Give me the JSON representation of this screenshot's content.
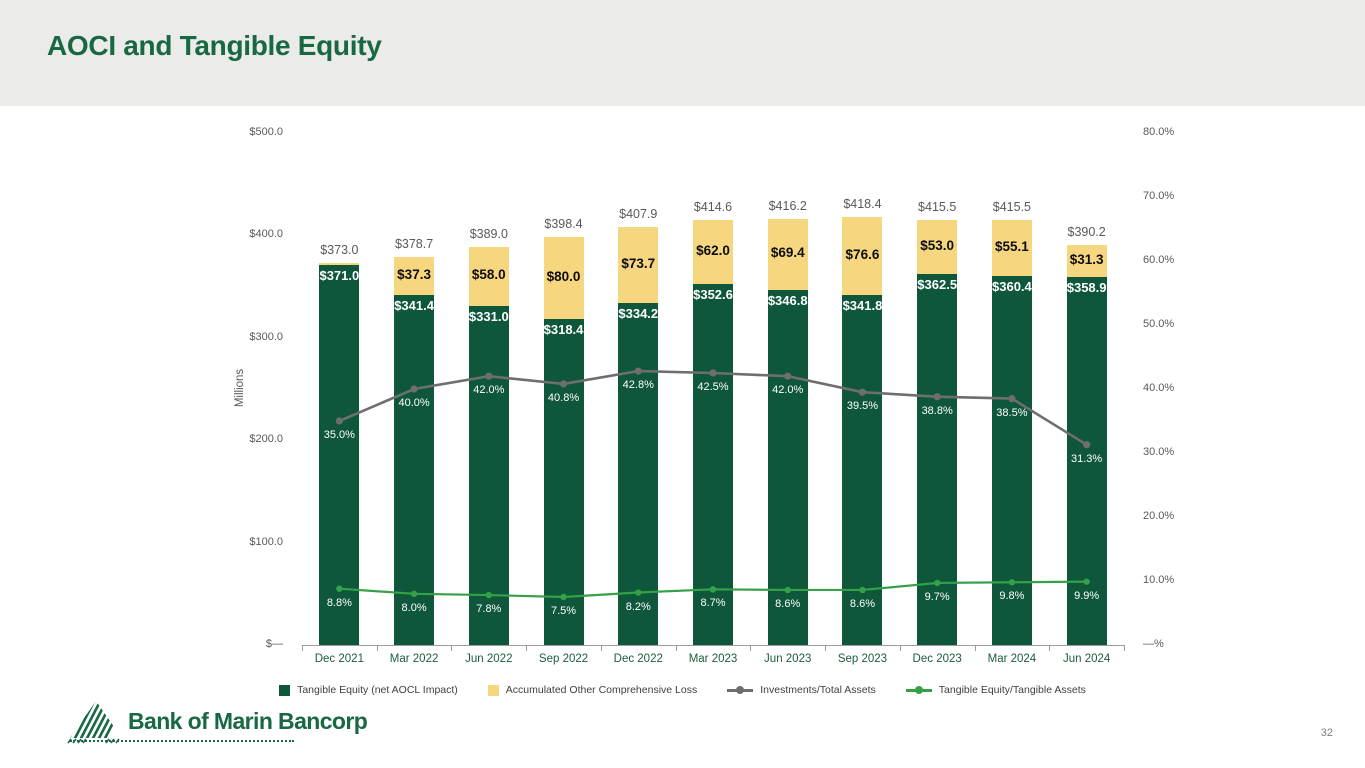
{
  "slide": {
    "title": "AOCI and Tangible Equity",
    "page_number": "32",
    "logo_text": "Bank of Marin Bancorp"
  },
  "colors": {
    "title_green": "#176843",
    "bar_green": "#0F573B",
    "bar_yellow": "#F7D680",
    "line_gray": "#6E6E6E",
    "line_green": "#34A048",
    "axis_text": "#595959",
    "x_label_green": "#1D5C39",
    "header_bg": "#EBEBE9"
  },
  "chart_data": {
    "type": "combo-stacked-bar-line",
    "categories": [
      "Dec 2021",
      "Mar 2022",
      "Jun 2022",
      "Sep 2022",
      "Dec 2022",
      "Mar 2023",
      "Jun 2023",
      "Sep 2023",
      "Dec 2023",
      "Mar 2024",
      "Jun 2024"
    ],
    "series": [
      {
        "name": "Tangible Equity (net AOCL Impact)",
        "type": "bar",
        "color": "#0F573B",
        "values": [
          371.0,
          341.4,
          331.0,
          318.4,
          334.2,
          352.6,
          346.8,
          341.8,
          362.5,
          360.4,
          358.9
        ],
        "labels": [
          "$371.0",
          "$341.4",
          "$331.0",
          "$318.4",
          "$334.2",
          "$352.6",
          "$346.8",
          "$341.8",
          "$362.5",
          "$360.4",
          "$358.9"
        ]
      },
      {
        "name": "Accumulated Other Comprehensive Loss",
        "type": "bar",
        "color": "#F7D680",
        "values": [
          2.0,
          37.3,
          58.0,
          80.0,
          73.7,
          62.0,
          69.4,
          76.6,
          53.0,
          55.1,
          31.3
        ],
        "labels": [
          "",
          "$37.3",
          "$58.0",
          "$80.0",
          "$73.7",
          "$62.0",
          "$69.4",
          "$76.6",
          "$53.0",
          "$55.1",
          "$31.3"
        ]
      },
      {
        "name": "Investments/Total Assets",
        "type": "line",
        "color": "#6E6E6E",
        "values": [
          35.0,
          40.0,
          42.0,
          40.8,
          42.8,
          42.5,
          42.0,
          39.5,
          38.8,
          38.5,
          31.3
        ],
        "labels": [
          "35.0%",
          "40.0%",
          "42.0%",
          "40.8%",
          "42.8%",
          "42.5%",
          "42.0%",
          "39.5%",
          "38.8%",
          "38.5%",
          "31.3%"
        ]
      },
      {
        "name": "Tangible Equity/Tangible Assets",
        "type": "line",
        "color": "#34A048",
        "values": [
          8.8,
          8.0,
          7.8,
          7.5,
          8.2,
          8.7,
          8.6,
          8.6,
          9.7,
          9.8,
          9.9
        ],
        "labels": [
          "8.8%",
          "8.0%",
          "7.8%",
          "7.5%",
          "8.2%",
          "8.7%",
          "8.6%",
          "8.6%",
          "9.7%",
          "9.8%",
          "9.9%"
        ]
      }
    ],
    "totals": [
      "$373.0",
      "$378.7",
      "$389.0",
      "$398.4",
      "$407.9",
      "$414.6",
      "$416.2",
      "$418.4",
      "$415.5",
      "$415.5",
      "$390.2"
    ],
    "left_axis": {
      "title": "Millions",
      "ticks": [
        "$500.0",
        "$400.0",
        "$300.0",
        "$200.0",
        "$100.0",
        "$—"
      ],
      "max": 500,
      "min": 0
    },
    "right_axis": {
      "ticks": [
        "80.0%",
        "70.0%",
        "60.0%",
        "50.0%",
        "40.0%",
        "30.0%",
        "20.0%",
        "10.0%",
        "—%"
      ],
      "max": 80,
      "min": 0
    },
    "grid": false,
    "legend_position": "bottom"
  }
}
